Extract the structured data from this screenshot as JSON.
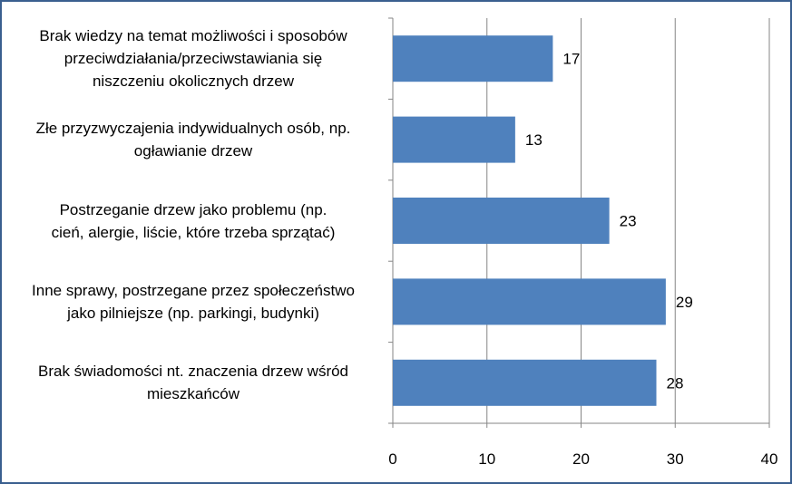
{
  "chart_data": {
    "type": "bar",
    "orientation": "horizontal",
    "categories": [
      "Brak wiedzy na temat możliwości i sposobów przeciwdziałania/przeciwstawiania się niszczeniu okolicznych drzew",
      "Złe przyzwyczajenia indywidualnych osób, np. ogławianie drzew",
      "Postrzeganie drzew jako problemu (np. cień, alergie, liście, które trzeba sprzątać)",
      "Inne sprawy, postrzegane przez społeczeństwo jako pilniejsze (np. parkingi, budynki)",
      "Brak świadomości nt. znaczenia drzew wśród mieszkańców"
    ],
    "category_lines": [
      [
        "Brak wiedzy na temat możliwości i sposobów",
        "przeciwdziałania/przeciwstawiania się",
        "niszczeniu okolicznych drzew"
      ],
      [
        "Złe przyzwyczajenia indywidualnych osób, np.",
        "ogławianie drzew"
      ],
      [
        "Postrzeganie drzew jako problemu (np.",
        "cień, alergie, liście, które trzeba sprzątać)"
      ],
      [
        "Inne sprawy, postrzegane przez społeczeństwo",
        "jako pilniejsze (np. parkingi, budynki)"
      ],
      [
        "Brak świadomości nt. znaczenia drzew wśród",
        "mieszkańców"
      ]
    ],
    "values": [
      17,
      13,
      23,
      29,
      28
    ],
    "x_ticks": [
      "0",
      "10",
      "20",
      "30",
      "40"
    ],
    "xlim": [
      0,
      40
    ],
    "grid": true,
    "legend": "none",
    "colors": {
      "bar": "#4f81bd",
      "grid": "#868686",
      "border": "#3a5f8f"
    }
  }
}
